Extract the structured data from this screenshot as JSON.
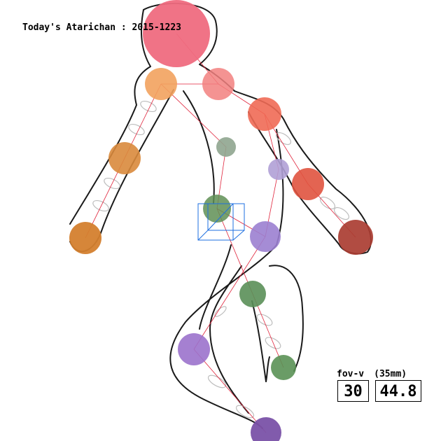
{
  "header": {
    "title": "Today's Atarichan : 2015-1223"
  },
  "camera": {
    "fov_label": "fov-v",
    "focal_label": "(35mm)",
    "fov_value": "30",
    "focal_value": "44.8"
  },
  "colors": {
    "head": "#ef6b80",
    "outline": "#1a1a1a",
    "bone": "#e0223a",
    "gizmo": "#1e6fe0",
    "spring": "#bdbdbd"
  },
  "joints": [
    {
      "name": "head",
      "color": "#ef6b80"
    },
    {
      "name": "shoulder-right",
      "color": "#f2a25e"
    },
    {
      "name": "elbow-right",
      "color": "#d98a3c"
    },
    {
      "name": "hand-right",
      "color": "#d47f2e"
    },
    {
      "name": "neck",
      "color": "#f2807f"
    },
    {
      "name": "shoulder-left",
      "color": "#f06a55"
    },
    {
      "name": "elbow-left",
      "color": "#e0533f"
    },
    {
      "name": "hand-left",
      "color": "#aa3d32"
    },
    {
      "name": "chest",
      "color": "#8fa58f"
    },
    {
      "name": "pelvis",
      "color": "#5f8f55"
    },
    {
      "name": "hip-left",
      "color": "#b0a0d6"
    },
    {
      "name": "thigh-left",
      "color": "#9b7fd0"
    },
    {
      "name": "knee-left",
      "color": "#5a8f58"
    },
    {
      "name": "foot-left",
      "color": "#5a9155"
    },
    {
      "name": "knee-right",
      "color": "#9b72cc"
    },
    {
      "name": "foot-right",
      "color": "#7a52a8"
    }
  ]
}
